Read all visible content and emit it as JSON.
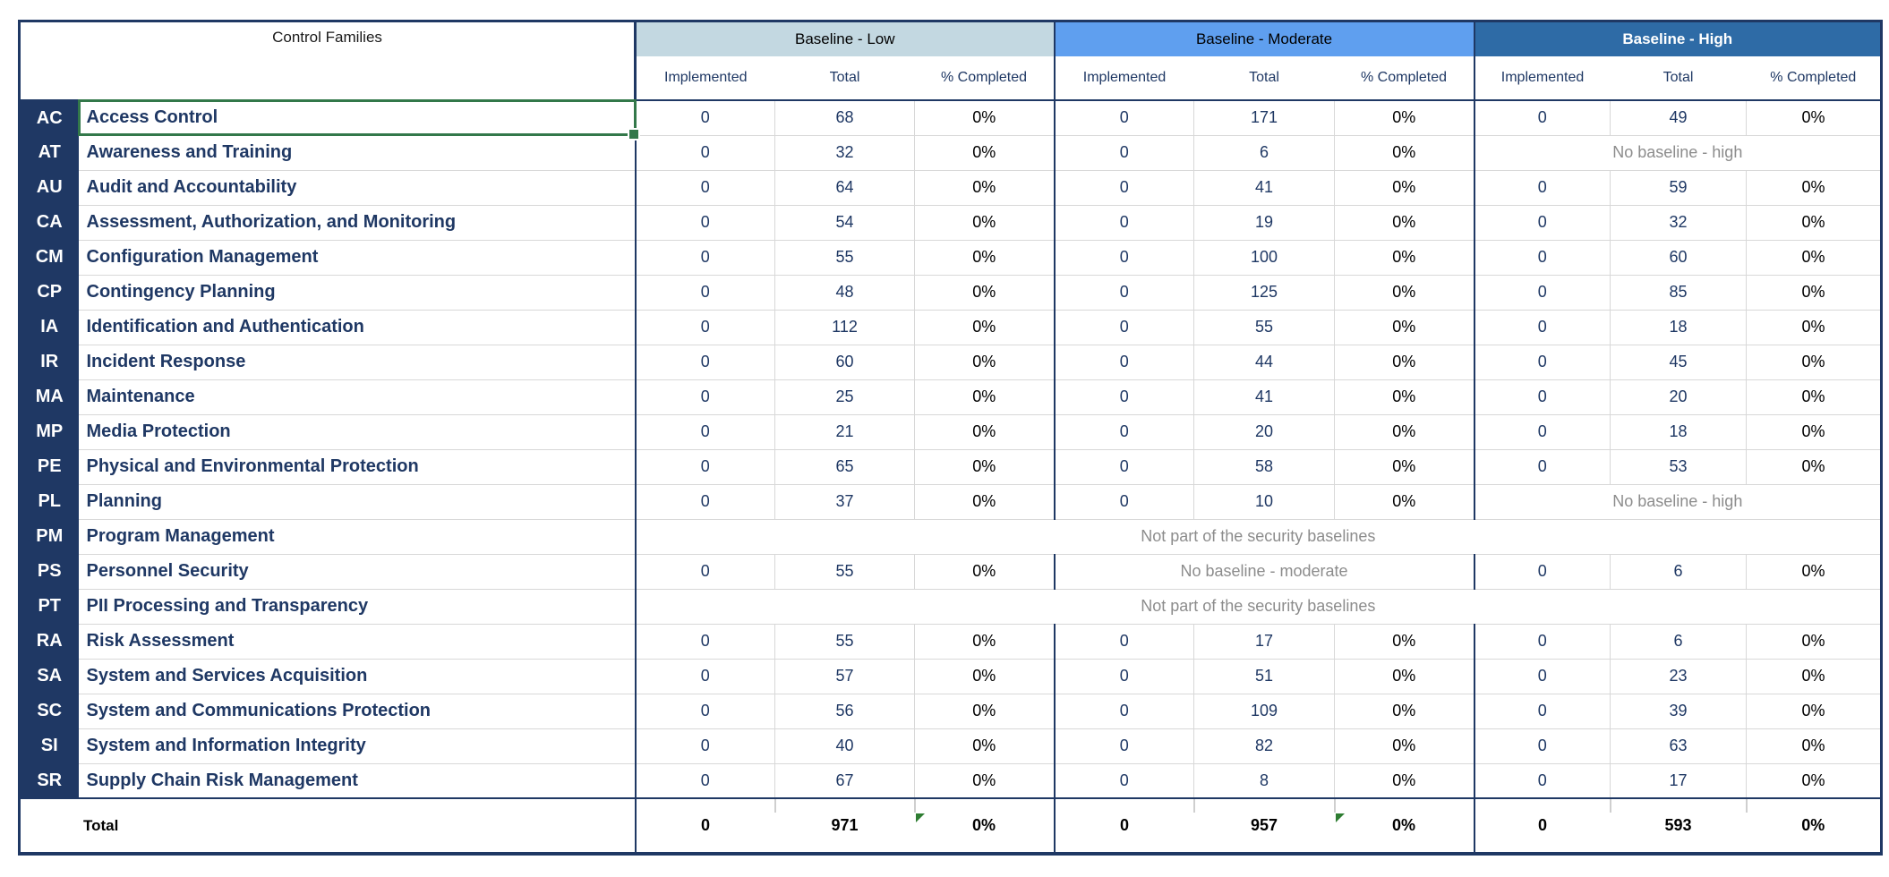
{
  "table": {
    "corner_header": "Control Families",
    "sections": [
      {
        "label": "Baseline - Low",
        "bg": "#C3D8E1",
        "text_color": "#000000"
      },
      {
        "label": "Baseline - Moderate",
        "bg": "#5F9FEF",
        "text_color": "#000000"
      },
      {
        "label": "Baseline - High",
        "bg": "#2E6BA6",
        "text_color": "#FFFFFF"
      }
    ],
    "subheaders": [
      "Implemented",
      "Total",
      "% Completed"
    ],
    "notes": {
      "no_high": "No baseline - high",
      "no_moderate": "No baseline - moderate",
      "not_part": "Not part of the security baselines"
    },
    "rows": [
      {
        "code": "AC",
        "name": "Access Control",
        "selected": true,
        "low": [
          "0",
          "68",
          "0%"
        ],
        "moderate": [
          "0",
          "171",
          "0%"
        ],
        "high": [
          "0",
          "49",
          "0%"
        ]
      },
      {
        "code": "AT",
        "name": "Awareness and Training",
        "low": [
          "0",
          "32",
          "0%"
        ],
        "moderate": [
          "0",
          "6",
          "0%"
        ],
        "high": "No baseline - high"
      },
      {
        "code": "AU",
        "name": "Audit and Accountability",
        "low": [
          "0",
          "64",
          "0%"
        ],
        "moderate": [
          "0",
          "41",
          "0%"
        ],
        "high": [
          "0",
          "59",
          "0%"
        ]
      },
      {
        "code": "CA",
        "name": "Assessment, Authorization, and Monitoring",
        "low": [
          "0",
          "54",
          "0%"
        ],
        "moderate": [
          "0",
          "19",
          "0%"
        ],
        "high": [
          "0",
          "32",
          "0%"
        ]
      },
      {
        "code": "CM",
        "name": "Configuration Management",
        "low": [
          "0",
          "55",
          "0%"
        ],
        "moderate": [
          "0",
          "100",
          "0%"
        ],
        "high": [
          "0",
          "60",
          "0%"
        ]
      },
      {
        "code": "CP",
        "name": "Contingency Planning",
        "low": [
          "0",
          "48",
          "0%"
        ],
        "moderate": [
          "0",
          "125",
          "0%"
        ],
        "high": [
          "0",
          "85",
          "0%"
        ]
      },
      {
        "code": "IA",
        "name": "Identification and Authentication",
        "low": [
          "0",
          "112",
          "0%"
        ],
        "moderate": [
          "0",
          "55",
          "0%"
        ],
        "high": [
          "0",
          "18",
          "0%"
        ]
      },
      {
        "code": "IR",
        "name": "Incident Response",
        "low": [
          "0",
          "60",
          "0%"
        ],
        "moderate": [
          "0",
          "44",
          "0%"
        ],
        "high": [
          "0",
          "45",
          "0%"
        ]
      },
      {
        "code": "MA",
        "name": "Maintenance",
        "low": [
          "0",
          "25",
          "0%"
        ],
        "moderate": [
          "0",
          "41",
          "0%"
        ],
        "high": [
          "0",
          "20",
          "0%"
        ]
      },
      {
        "code": "MP",
        "name": "Media Protection",
        "low": [
          "0",
          "21",
          "0%"
        ],
        "moderate": [
          "0",
          "20",
          "0%"
        ],
        "high": [
          "0",
          "18",
          "0%"
        ]
      },
      {
        "code": "PE",
        "name": "Physical and Environmental Protection",
        "low": [
          "0",
          "65",
          "0%"
        ],
        "moderate": [
          "0",
          "58",
          "0%"
        ],
        "high": [
          "0",
          "53",
          "0%"
        ]
      },
      {
        "code": "PL",
        "name": "Planning",
        "low": [
          "0",
          "37",
          "0%"
        ],
        "moderate": [
          "0",
          "10",
          "0%"
        ],
        "high": "No baseline - high"
      },
      {
        "code": "PM",
        "name": "Program Management",
        "span_all": "Not part of the security baselines"
      },
      {
        "code": "PS",
        "name": "Personnel Security",
        "low": [
          "0",
          "55",
          "0%"
        ],
        "moderate": "No baseline - moderate",
        "high": [
          "0",
          "6",
          "0%"
        ]
      },
      {
        "code": "PT",
        "name": "PII Processing and Transparency",
        "span_all": "Not part of the security baselines"
      },
      {
        "code": "RA",
        "name": "Risk Assessment",
        "low": [
          "0",
          "55",
          "0%"
        ],
        "moderate": [
          "0",
          "17",
          "0%"
        ],
        "high": [
          "0",
          "6",
          "0%"
        ]
      },
      {
        "code": "SA",
        "name": "System and Services Acquisition",
        "low": [
          "0",
          "57",
          "0%"
        ],
        "moderate": [
          "0",
          "51",
          "0%"
        ],
        "high": [
          "0",
          "23",
          "0%"
        ]
      },
      {
        "code": "SC",
        "name": "System and Communications Protection",
        "low": [
          "0",
          "56",
          "0%"
        ],
        "moderate": [
          "0",
          "109",
          "0%"
        ],
        "high": [
          "0",
          "39",
          "0%"
        ]
      },
      {
        "code": "SI",
        "name": "System and Information Integrity",
        "low": [
          "0",
          "40",
          "0%"
        ],
        "moderate": [
          "0",
          "82",
          "0%"
        ],
        "high": [
          "0",
          "63",
          "0%"
        ]
      },
      {
        "code": "SR",
        "name": "Supply Chain Risk Management",
        "low": [
          "0",
          "67",
          "0%"
        ],
        "moderate": [
          "0",
          "8",
          "0%"
        ],
        "high": [
          "0",
          "17",
          "0%"
        ]
      }
    ],
    "total_row": {
      "label": "Total",
      "sections": [
        [
          "0",
          "971",
          "0%"
        ],
        [
          "0",
          "957",
          "0%"
        ],
        [
          "0",
          "593",
          "0%"
        ]
      ],
      "error_flags": [
        true,
        true,
        false
      ]
    },
    "colors": {
      "navy": "#1F3864",
      "gridline": "#D8D8D8",
      "muted_text": "#8C8C8C",
      "selection_green": "#33784A",
      "flag_green": "#2E7D32"
    }
  }
}
